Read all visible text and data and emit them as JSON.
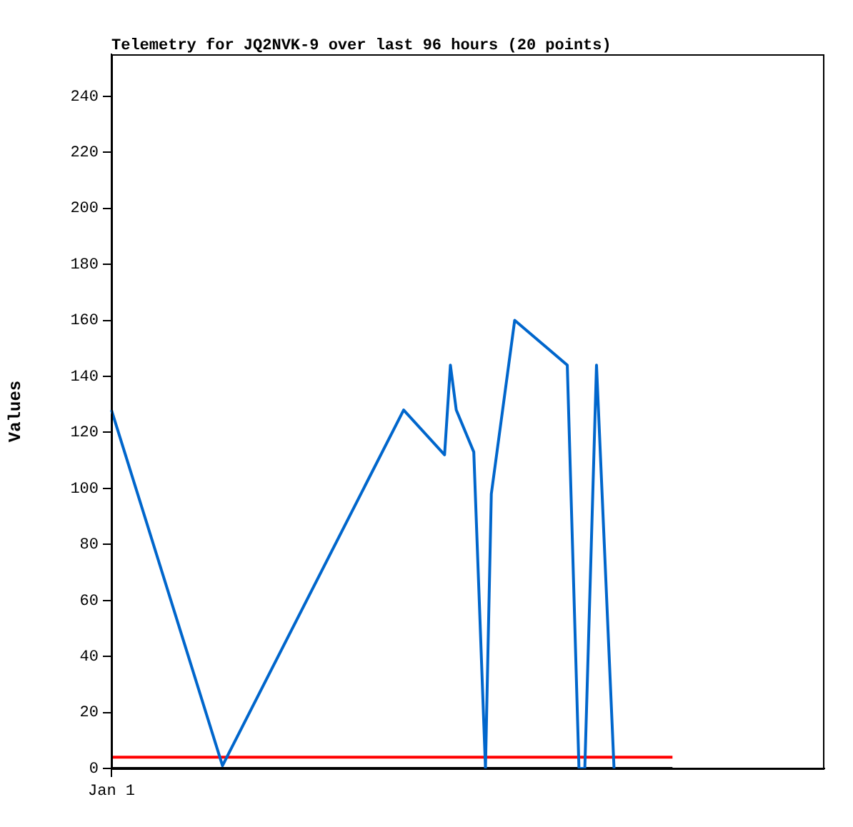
{
  "chart_data": {
    "type": "line",
    "title": "Telemetry for JQ2NVK-9 over last 96 hours (20 points)",
    "ylabel": "Values",
    "categories": [
      "Jan 1",
      null,
      null,
      null,
      null,
      null,
      null,
      null,
      null,
      null,
      null,
      null,
      null,
      null,
      null,
      null,
      null,
      null,
      null,
      null,
      null,
      null,
      null,
      null,
      null,
      null,
      null,
      null,
      null,
      null,
      null,
      null,
      null,
      null,
      null,
      null,
      null,
      null,
      null,
      null,
      null,
      null,
      null,
      null,
      null,
      null,
      null,
      null,
      null,
      null,
      null,
      null,
      null,
      null,
      null,
      null,
      null,
      null,
      null,
      null,
      null,
      null,
      null,
      null,
      null,
      null,
      null,
      null,
      null,
      null,
      null,
      null,
      null,
      null,
      null,
      null,
      null,
      null,
      null,
      null,
      null,
      null,
      null,
      null,
      null,
      null,
      null,
      null,
      null,
      null,
      null,
      null,
      null,
      null,
      null,
      null,
      null,
      null,
      null,
      null,
      null,
      null,
      null,
      null,
      null,
      null,
      null,
      null,
      null,
      null,
      null,
      null,
      null,
      null,
      null,
      null,
      null,
      null,
      null,
      null,
      null,
      null,
      null
    ],
    "ylim": [
      0,
      255
    ],
    "yticks": [
      0,
      20,
      40,
      60,
      80,
      100,
      120,
      140,
      160,
      180,
      200,
      220,
      240
    ],
    "series": [
      {
        "color": "#0066cc",
        "values": [
          128,
          null,
          null,
          null,
          null,
          null,
          null,
          null,
          null,
          null,
          null,
          null,
          null,
          null,
          null,
          null,
          null,
          null,
          null,
          1,
          null,
          null,
          null,
          null,
          null,
          null,
          null,
          null,
          null,
          null,
          null,
          null,
          null,
          null,
          null,
          null,
          null,
          null,
          null,
          null,
          null,
          null,
          null,
          null,
          null,
          null,
          null,
          null,
          null,
          null,
          128,
          null,
          null,
          null,
          null,
          null,
          null,
          112,
          144,
          128,
          null,
          null,
          113,
          null,
          0,
          98,
          null,
          null,
          null,
          160,
          null,
          null,
          null,
          null,
          null,
          null,
          null,
          null,
          144,
          null,
          0,
          0,
          null,
          144,
          null,
          null,
          0,
          null,
          null,
          null,
          null,
          null,
          null,
          null,
          null,
          null,
          null,
          null,
          null,
          null,
          null,
          null,
          null,
          null,
          null,
          null,
          null,
          null,
          null,
          null,
          null,
          null,
          null,
          null,
          null,
          null,
          null,
          null,
          null,
          null,
          null,
          null,
          null
        ]
      },
      {
        "color": "#ff0000",
        "values": [
          4,
          4,
          4,
          4,
          4,
          4,
          4,
          4,
          4,
          4,
          4,
          4,
          4,
          4,
          4,
          4,
          4,
          4,
          4,
          4,
          4,
          4,
          4,
          4,
          4,
          4,
          4,
          4,
          4,
          4,
          4,
          4,
          4,
          4,
          4,
          4,
          4,
          4,
          4,
          4,
          4,
          4,
          4,
          4,
          4,
          4,
          4,
          4,
          4,
          4,
          4,
          4,
          4,
          4,
          4,
          4,
          4,
          4,
          4,
          4,
          4,
          4,
          4,
          4,
          4,
          4,
          4,
          4,
          4,
          4,
          4,
          4,
          4,
          4,
          4,
          4,
          4,
          4,
          4,
          4,
          4,
          4,
          4,
          4,
          4,
          4,
          4,
          4,
          4,
          4,
          4,
          4,
          4,
          4,
          4,
          4,
          4,
          null,
          null,
          null,
          null,
          null,
          null,
          null,
          null,
          null,
          null,
          null,
          null,
          null,
          null,
          null,
          null,
          null,
          null,
          null,
          null,
          null,
          null,
          null,
          null,
          null,
          null
        ]
      },
      {
        "color": "#000000",
        "values": [
          0,
          0,
          0,
          0,
          0,
          0,
          0,
          0,
          0,
          0,
          0,
          0,
          0,
          0,
          0,
          0,
          0,
          0,
          0,
          0,
          0,
          0,
          0,
          0,
          0,
          0,
          0,
          0,
          0,
          0,
          0,
          0,
          0,
          0,
          0,
          0,
          0,
          0,
          0,
          0,
          0,
          0,
          0,
          0,
          0,
          0,
          0,
          0,
          0,
          0,
          0,
          0,
          0,
          0,
          0,
          0,
          0,
          0,
          0,
          0,
          0,
          0,
          0,
          0,
          0,
          0,
          0,
          0,
          0,
          0,
          0,
          0,
          0,
          0,
          0,
          0,
          0,
          0,
          0,
          0,
          0,
          0,
          0,
          0,
          0,
          0,
          0,
          0,
          0,
          0,
          0,
          0,
          0,
          0,
          0,
          0,
          0,
          null,
          null,
          null,
          null,
          null,
          null,
          null,
          null,
          null,
          null,
          null,
          null,
          null,
          null,
          null,
          null,
          null,
          null,
          null,
          null,
          null,
          null,
          null,
          null,
          null,
          null
        ]
      }
    ]
  }
}
